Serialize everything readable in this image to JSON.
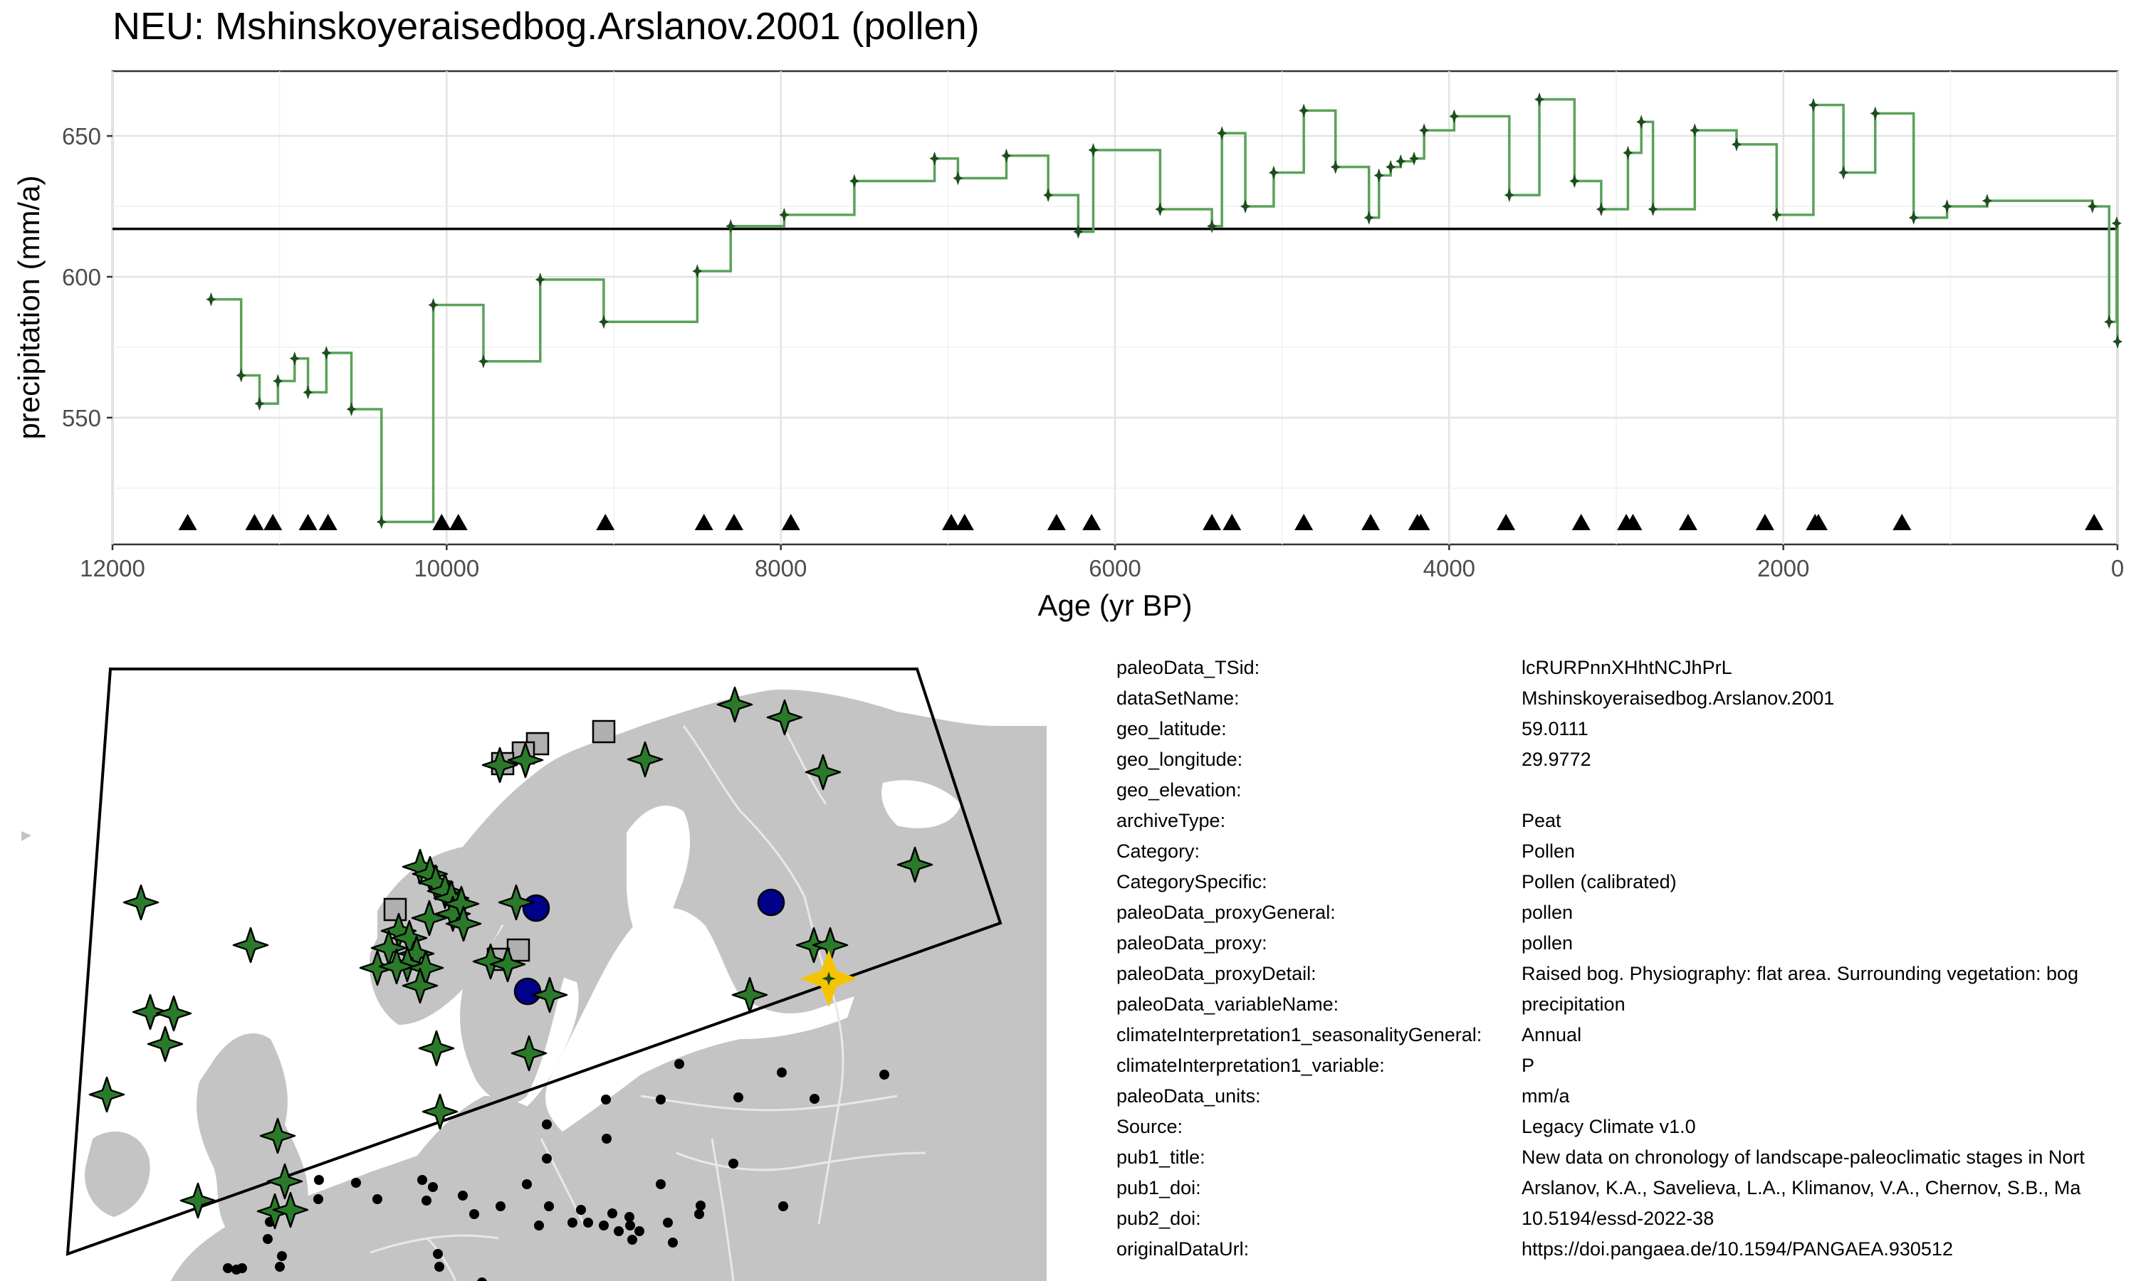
{
  "title": "NEU: Mshinskoyeraisedbog.Arslanov.2001 (pollen)",
  "chart_data": {
    "type": "line",
    "step": true,
    "title": "NEU: Mshinskoyeraisedbog.Arslanov.2001 (pollen)",
    "xlabel": "Age (yr BP)",
    "ylabel": "precipitation (mm/a)",
    "x_reversed": true,
    "xlim": [
      12000,
      0
    ],
    "ylim": [
      505,
      673
    ],
    "xticks": [
      12000,
      10000,
      8000,
      6000,
      4000,
      2000,
      0
    ],
    "xtick_labels": [
      "12000",
      "10000",
      "8000",
      "6000",
      "4000",
      "2000",
      "0"
    ],
    "yticks": [
      550,
      600,
      650
    ],
    "ytick_labels": [
      "550",
      "600",
      "650"
    ],
    "grid": true,
    "series_color": "#5aa25a",
    "marker_color": "#1e4d1e",
    "reference_line": 617,
    "series": [
      {
        "x": [
          11410,
          11230,
          11120,
          11010,
          10910,
          10830,
          10720,
          10570,
          10390,
          10080,
          9780,
          9440,
          9060,
          8500,
          8300,
          7980,
          7560,
          7080,
          6940,
          6650,
          6400,
          6220,
          6130,
          5730,
          5420,
          5360,
          5220,
          5050,
          4870,
          4680,
          4480,
          4420,
          4350,
          4290,
          4210,
          4150,
          3970,
          3640,
          3460,
          3250,
          3090,
          2930,
          2850,
          2780,
          2530,
          2280,
          2040,
          1820,
          1640,
          1450,
          1220,
          1020,
          780,
          150,
          50,
          5,
          0
        ],
        "y": [
          592,
          565,
          555,
          563,
          571,
          559,
          573,
          553,
          513,
          590,
          570,
          599,
          584,
          602,
          618,
          622,
          634,
          642,
          635,
          643,
          629,
          616,
          645,
          624,
          618,
          651,
          625,
          637,
          659,
          639,
          621,
          636,
          639,
          641,
          642,
          652,
          657,
          629,
          663,
          634,
          624,
          644,
          655,
          624,
          652,
          647,
          622,
          661,
          637,
          658,
          621,
          625,
          627,
          625,
          584,
          619,
          577
        ]
      }
    ],
    "chronology_markers_x": [
      11550,
      11150,
      11040,
      10830,
      10710,
      10030,
      9930,
      9050,
      8460,
      8280,
      7940,
      6980,
      6900,
      6350,
      6140,
      5420,
      5300,
      4870,
      4470,
      4190,
      4170,
      3660,
      3210,
      2940,
      2900,
      2570,
      2110,
      1810,
      1790,
      1290,
      140
    ]
  },
  "map": {
    "land_color": "#c4c4c4",
    "ocean_color": "#ffffff",
    "marker_colors": {
      "pollen": "#2b7a2b",
      "selected": "#f5c400",
      "other": "#00008b",
      "square": "#b0b0b0",
      "dot": "#000000"
    }
  },
  "metadata": [
    {
      "key": "paleoData_TSid:",
      "value": "lcRURPnnXHhtNCJhPrL"
    },
    {
      "key": "dataSetName:",
      "value": "Mshinskoyeraisedbog.Arslanov.2001"
    },
    {
      "key": "geo_latitude:",
      "value": "59.0111"
    },
    {
      "key": "geo_longitude:",
      "value": "29.9772"
    },
    {
      "key": "geo_elevation:",
      "value": ""
    },
    {
      "key": "archiveType:",
      "value": "Peat"
    },
    {
      "key": "Category:",
      "value": "Pollen"
    },
    {
      "key": "CategorySpecific:",
      "value": "Pollen (calibrated)"
    },
    {
      "key": "paleoData_proxyGeneral:",
      "value": "pollen"
    },
    {
      "key": "paleoData_proxy:",
      "value": "pollen"
    },
    {
      "key": "paleoData_proxyDetail:",
      "value": "Raised bog. Physiography: flat area. Surrounding vegetation: bog"
    },
    {
      "key": "paleoData_variableName:",
      "value": "precipitation"
    },
    {
      "key": "climateInterpretation1_seasonalityGeneral:",
      "value": "Annual"
    },
    {
      "key": "climateInterpretation1_variable:",
      "value": "P"
    },
    {
      "key": "paleoData_units:",
      "value": "mm/a"
    },
    {
      "key": "Source:",
      "value": "Legacy Climate v1.0"
    },
    {
      "key": "pub1_title:",
      "value": "New data on chronology of landscape-paleoclimatic stages in Nort"
    },
    {
      "key": "pub1_doi:",
      "value": "Arslanov, K.A., Savelieva, L.A., Klimanov, V.A., Chernov, S.B., Ma"
    },
    {
      "key": "pub2_doi:",
      "value": "10.5194/essd-2022-38"
    },
    {
      "key": "originalDataUrl:",
      "value": "https://doi.pangaea.de/10.1594/PANGAEA.930512"
    }
  ]
}
